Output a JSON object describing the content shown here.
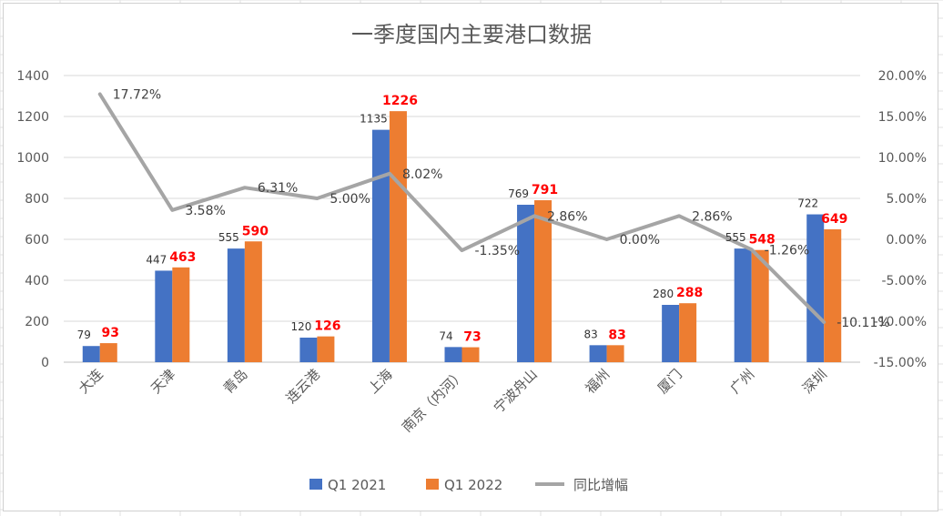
{
  "chart_data": {
    "type": "bar",
    "title": "一季度国内主要港口数据",
    "categories": [
      "大连",
      "天津",
      "青岛",
      "连云港",
      "上海",
      "南京（内河）",
      "宁波舟山",
      "福州",
      "厦门",
      "广州",
      "深圳"
    ],
    "series": [
      {
        "name": "Q1 2021",
        "type": "bar",
        "color": "#4472C4",
        "values": [
          79,
          447,
          555,
          120,
          1135,
          74,
          769,
          83,
          280,
          555,
          722
        ]
      },
      {
        "name": "Q1 2022",
        "type": "bar",
        "color": "#ED7D31",
        "values": [
          93,
          463,
          590,
          126,
          1226,
          73,
          791,
          83,
          288,
          548,
          649
        ]
      },
      {
        "name": "同比增幅",
        "type": "line",
        "color": "#A5A5A5",
        "axis": "right",
        "values": [
          17.72,
          3.58,
          6.31,
          5.0,
          8.02,
          -1.35,
          2.86,
          0.0,
          2.86,
          -1.26,
          -10.11
        ],
        "labels": [
          "17.72%",
          "3.58%",
          "6.31%",
          "5.00%",
          "8.02%",
          "-1.35%",
          "2.86%",
          "0.00%",
          "2.86%",
          "-1.26%",
          "-10.11%"
        ]
      }
    ],
    "y_left": {
      "min": 0,
      "max": 1400,
      "ticks": [
        "0",
        "200",
        "400",
        "600",
        "800",
        "1000",
        "1200",
        "1400"
      ]
    },
    "y_right": {
      "min": -15,
      "max": 20,
      "ticks": [
        "-15.00%",
        "-10.00%",
        "-5.00%",
        "0.00%",
        "5.00%",
        "10.00%",
        "15.00%",
        "20.00%"
      ]
    },
    "grid": true,
    "legend": "bottom",
    "label_colors": {
      "q1_2021": "#333333",
      "q1_2022": "#FF0000"
    }
  }
}
